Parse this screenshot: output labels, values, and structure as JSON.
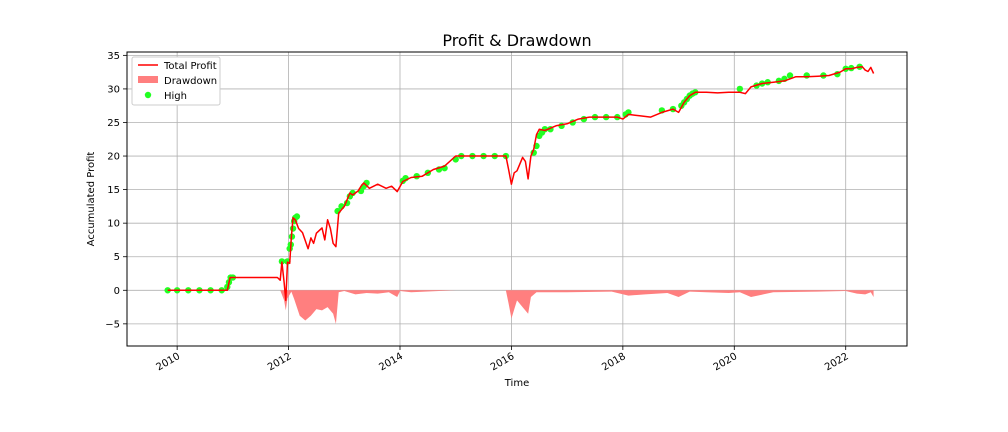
{
  "chart_data": {
    "type": "line",
    "title": "Profit & Drawdown",
    "xlabel": "Time",
    "ylabel": "Accumulated Profit",
    "xlim": [
      2009.1,
      2023.1
    ],
    "ylim": [
      -8.3,
      35.5
    ],
    "x_ticks": [
      2010,
      2012,
      2014,
      2016,
      2018,
      2020,
      2022
    ],
    "x_tick_labels": [
      "2010",
      "2012",
      "2014",
      "2016",
      "2018",
      "2020",
      "2022"
    ],
    "y_ticks": [
      -5,
      0,
      5,
      10,
      15,
      20,
      25,
      30,
      35
    ],
    "y_tick_labels": [
      "−5",
      "0",
      "5",
      "10",
      "15",
      "20",
      "25",
      "30",
      "35"
    ],
    "grid": true,
    "legend_position": "upper-left",
    "colors": {
      "profit": "#ff0000",
      "drawdown": "#ff7f7f",
      "high": "#22ff22"
    },
    "series": [
      {
        "name": "Total Profit",
        "kind": "line",
        "x": [
          2009.83,
          2010.5,
          2010.9,
          2010.95,
          2011.3,
          2011.8,
          2011.85,
          2011.88,
          2011.92,
          2011.95,
          2011.98,
          2012.02,
          2012.05,
          2012.08,
          2012.12,
          2012.18,
          2012.25,
          2012.35,
          2012.4,
          2012.45,
          2012.5,
          2012.6,
          2012.65,
          2012.7,
          2012.75,
          2012.8,
          2012.85,
          2012.9,
          2012.95,
          2013.0,
          2013.1,
          2013.15,
          2013.25,
          2013.3,
          2013.35,
          2013.45,
          2013.6,
          2013.75,
          2013.85,
          2013.95,
          2014.05,
          2014.2,
          2014.4,
          2014.6,
          2014.8,
          2015.0,
          2015.3,
          2015.6,
          2015.9,
          2015.95,
          2016.0,
          2016.05,
          2016.1,
          2016.2,
          2016.25,
          2016.3,
          2016.35,
          2016.4,
          2016.45,
          2016.5,
          2016.6,
          2016.8,
          2017.0,
          2017.2,
          2017.4,
          2017.6,
          2017.9,
          2018.0,
          2018.1,
          2018.3,
          2018.5,
          2018.7,
          2018.9,
          2019.0,
          2019.1,
          2019.2,
          2019.3,
          2019.5,
          2019.7,
          2019.9,
          2020.1,
          2020.2,
          2020.3,
          2020.5,
          2020.7,
          2020.9,
          2021.1,
          2021.3,
          2021.5,
          2021.7,
          2021.9,
          2022.0,
          2022.1,
          2022.2,
          2022.3,
          2022.35,
          2022.4,
          2022.45,
          2022.5
        ],
        "y": [
          0,
          0,
          0,
          1.9,
          1.9,
          1.9,
          1.5,
          4.2,
          1.2,
          -1.5,
          4.2,
          4.0,
          8.0,
          10.8,
          10.5,
          9.2,
          8.6,
          6.2,
          7.8,
          7.0,
          8.5,
          9.3,
          7.5,
          10.5,
          9.2,
          7.0,
          6.5,
          11.5,
          12.0,
          12.5,
          14.5,
          14.2,
          14.8,
          15.5,
          16.0,
          15.2,
          15.8,
          15.2,
          15.5,
          14.7,
          16.2,
          16.8,
          17.0,
          18.0,
          18.5,
          20.0,
          20.0,
          20.0,
          20.0,
          18.0,
          15.8,
          17.5,
          17.8,
          19.8,
          19.2,
          16.6,
          20.0,
          21.0,
          23.2,
          24.0,
          23.8,
          24.5,
          24.8,
          25.5,
          25.8,
          25.8,
          25.8,
          25.5,
          26.2,
          26.0,
          25.8,
          26.5,
          27.0,
          26.5,
          28.0,
          29.0,
          29.5,
          29.5,
          29.4,
          29.5,
          29.5,
          29.3,
          30.3,
          30.8,
          31.0,
          31.2,
          31.8,
          31.8,
          31.9,
          32.0,
          32.5,
          33.0,
          33.0,
          33.2,
          33.3,
          32.8,
          32.6,
          33.2,
          32.3
        ]
      },
      {
        "name": "Drawdown",
        "kind": "area",
        "x": [
          2009.83,
          2011.85,
          2011.92,
          2011.95,
          2011.98,
          2012.05,
          2012.1,
          2012.2,
          2012.3,
          2012.4,
          2012.5,
          2012.6,
          2012.7,
          2012.8,
          2012.85,
          2012.9,
          2013.0,
          2013.2,
          2013.4,
          2013.6,
          2013.8,
          2013.95,
          2014.0,
          2014.2,
          2015.0,
          2015.9,
          2015.95,
          2016.0,
          2016.1,
          2016.2,
          2016.3,
          2016.35,
          2016.45,
          2016.6,
          2017.0,
          2017.8,
          2018.1,
          2018.4,
          2018.8,
          2019.0,
          2019.2,
          2019.5,
          2019.9,
          2020.1,
          2020.3,
          2020.7,
          2021.5,
          2022.0,
          2022.2,
          2022.35,
          2022.45,
          2022.5
        ],
        "y": [
          0,
          0,
          -1.5,
          -3.0,
          -1.2,
          -0.2,
          -1.3,
          -3.8,
          -4.5,
          -3.8,
          -2.8,
          -3.0,
          -2.5,
          -3.5,
          -5.0,
          -0.3,
          -0.1,
          -0.6,
          -0.4,
          -0.5,
          -0.3,
          -1.0,
          -0.1,
          -0.3,
          0,
          0,
          -2.0,
          -4.2,
          -1.5,
          -2.5,
          -3.5,
          -1.0,
          -0.3,
          -0.3,
          -0.3,
          -0.2,
          -0.8,
          -0.6,
          -0.4,
          -1.0,
          -0.2,
          -0.3,
          -0.4,
          -0.3,
          -1.0,
          -0.3,
          -0.2,
          -0.1,
          -0.5,
          -0.6,
          -0.3,
          -1.0
        ]
      },
      {
        "name": "High",
        "kind": "scatter",
        "x": [
          2009.83,
          2010.0,
          2010.2,
          2010.4,
          2010.6,
          2010.8,
          2010.9,
          2010.93,
          2010.96,
          2011.0,
          2011.88,
          2011.98,
          2012.02,
          2012.04,
          2012.06,
          2012.08,
          2012.1,
          2012.12,
          2012.15,
          2012.88,
          2012.95,
          2013.05,
          2013.1,
          2013.15,
          2013.3,
          2013.35,
          2013.4,
          2014.05,
          2014.1,
          2014.3,
          2014.5,
          2014.7,
          2014.8,
          2015.0,
          2015.1,
          2015.3,
          2015.5,
          2015.7,
          2015.9,
          2016.4,
          2016.45,
          2016.5,
          2016.55,
          2016.6,
          2016.7,
          2016.9,
          2017.1,
          2017.3,
          2017.5,
          2017.7,
          2017.9,
          2018.05,
          2018.1,
          2018.7,
          2018.9,
          2019.05,
          2019.1,
          2019.15,
          2019.2,
          2019.25,
          2019.3,
          2020.1,
          2020.4,
          2020.5,
          2020.6,
          2020.8,
          2020.9,
          2021.0,
          2021.3,
          2021.6,
          2021.85,
          2022.0,
          2022.1,
          2022.25
        ],
        "y": [
          0,
          0,
          0,
          0,
          0,
          0,
          0.5,
          1.2,
          1.9,
          1.9,
          4.3,
          4.3,
          6.2,
          6.8,
          8.0,
          9.2,
          10.3,
          10.8,
          11.0,
          11.8,
          12.5,
          13.0,
          14.0,
          14.5,
          14.8,
          15.5,
          16.0,
          16.3,
          16.7,
          17.0,
          17.5,
          18.0,
          18.2,
          19.5,
          20.0,
          20.0,
          20.0,
          20.0,
          20.0,
          20.5,
          21.5,
          23.0,
          23.5,
          24.0,
          24.0,
          24.5,
          25.0,
          25.5,
          25.8,
          25.8,
          25.8,
          26.2,
          26.5,
          26.8,
          27.0,
          27.5,
          28.0,
          28.5,
          29.0,
          29.3,
          29.5,
          30.0,
          30.5,
          30.8,
          31.0,
          31.2,
          31.5,
          32.0,
          32.0,
          32.0,
          32.2,
          33.0,
          33.1,
          33.3
        ]
      }
    ]
  }
}
